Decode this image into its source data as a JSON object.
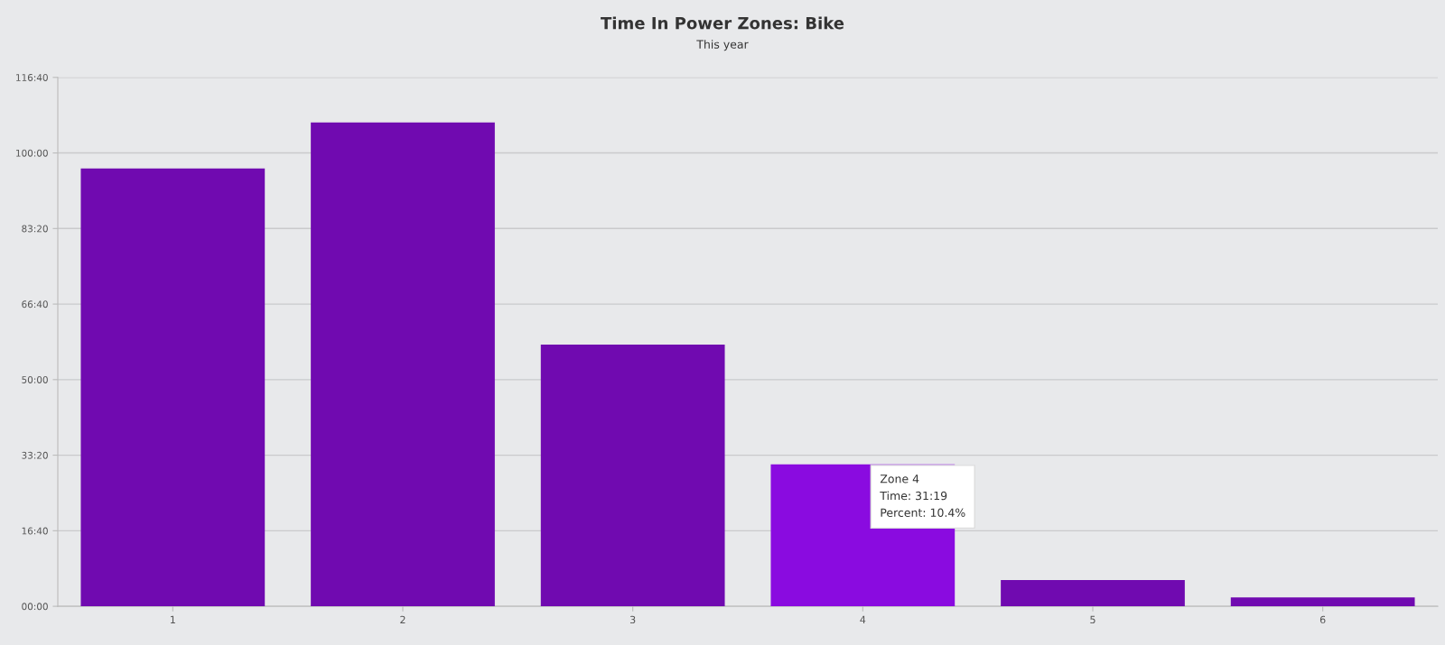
{
  "chart_data": {
    "type": "bar",
    "title": "Time In Power Zones: Bike",
    "subtitle": "This year",
    "categories": [
      "1",
      "2",
      "3",
      "4",
      "5",
      "6"
    ],
    "values": [
      5794,
      6403,
      3464,
      1879,
      346,
      119
    ],
    "colors": [
      "#700ab0",
      "#700ab0",
      "#700ab0",
      "#8a0be0",
      "#700ab0",
      "#700ab0"
    ],
    "ylim": [
      0,
      7000
    ],
    "yticks": [
      {
        "value": 0,
        "label": "00:00"
      },
      {
        "value": 1000,
        "label": "16:40"
      },
      {
        "value": 2000,
        "label": "33:20"
      },
      {
        "value": 3000,
        "label": "50:00"
      },
      {
        "value": 4000,
        "label": "66:40"
      },
      {
        "value": 5000,
        "label": "83:20"
      },
      {
        "value": 6000,
        "label": "100:00"
      },
      {
        "value": 7000,
        "label": "116:40"
      }
    ],
    "grid": "y",
    "annotations": [
      {
        "text": "Zone 4\nTime: 31:19\nPercent: 10.4%",
        "x": "4",
        "y": 1879
      }
    ]
  }
}
